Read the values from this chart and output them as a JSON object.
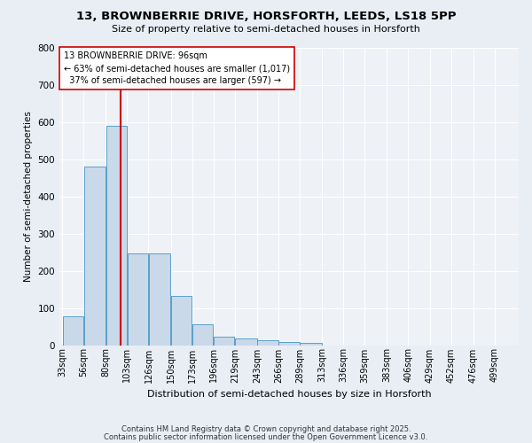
{
  "title": "13, BROWNBERRIE DRIVE, HORSFORTH, LEEDS, LS18 5PP",
  "subtitle": "Size of property relative to semi-detached houses in Horsforth",
  "xlabel": "Distribution of semi-detached houses by size in Horsforth",
  "ylabel": "Number of semi-detached properties",
  "bar_labels": [
    "33sqm",
    "56sqm",
    "80sqm",
    "103sqm",
    "126sqm",
    "150sqm",
    "173sqm",
    "196sqm",
    "219sqm",
    "243sqm",
    "266sqm",
    "289sqm",
    "313sqm",
    "336sqm",
    "359sqm",
    "383sqm",
    "406sqm",
    "429sqm",
    "452sqm",
    "476sqm",
    "499sqm"
  ],
  "bar_values": [
    78,
    480,
    590,
    248,
    248,
    133,
    55,
    22,
    18,
    13,
    8,
    5,
    0,
    0,
    0,
    0,
    0,
    0,
    0,
    0,
    0
  ],
  "bar_color": "#c9d9ea",
  "bar_edge_color": "#5a9fc8",
  "red_line_x": 96,
  "property_size": 96,
  "pct_smaller": 63,
  "n_smaller": 1017,
  "pct_larger": 37,
  "n_larger": 597,
  "annotation_label": "13 BROWNBERRIE DRIVE: 96sqm",
  "vline_color": "#cc0000",
  "ylim": [
    0,
    800
  ],
  "yticks": [
    0,
    100,
    200,
    300,
    400,
    500,
    600,
    700,
    800
  ],
  "bg_color": "#e8eef4",
  "plot_bg_color": "#eef2f7",
  "grid_color": "#ffffff",
  "bin_edges": [
    33,
    56,
    80,
    103,
    126,
    150,
    173,
    196,
    219,
    243,
    266,
    289,
    313,
    336,
    359,
    383,
    406,
    429,
    452,
    476,
    499,
    522
  ],
  "footer_line1": "Contains HM Land Registry data © Crown copyright and database right 2025.",
  "footer_line2": "Contains public sector information licensed under the Open Government Licence v3.0."
}
